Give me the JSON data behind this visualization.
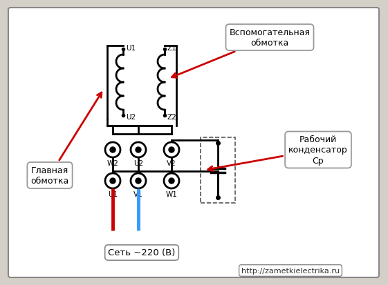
{
  "bg_color": "#d4d0c8",
  "diagram_bg": "#ffffff",
  "border_color": "#888888",
  "line_color": "#000000",
  "red_wire": "#cc0000",
  "blue_wire": "#3399ff",
  "arrow_color": "#cc0000",
  "url_text": "http://zametkielectrika.ru",
  "net_text": "Сеть ~220 (В)",
  "glavnaya_text": "Главная\nобмотка",
  "vspom_text": "Вспомогательная\nобмотка",
  "rabochiy_text": "Рабочий\nконденсатор\nСр"
}
